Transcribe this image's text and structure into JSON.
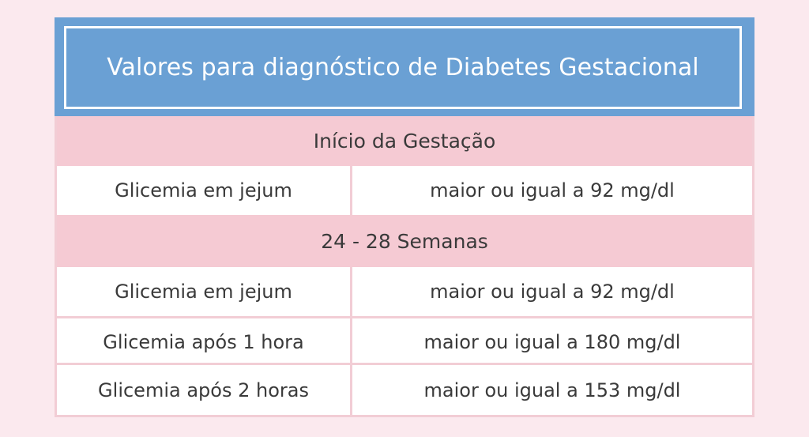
{
  "title": "Valores para diagnóstico de Diabetes Gestacional",
  "sections": [
    {
      "heading": "Início da Gestação",
      "rows": [
        {
          "test": "Glicemia em jejum",
          "value": "maior ou igual a 92 mg/dl"
        }
      ]
    },
    {
      "heading": "24 - 28 Semanas",
      "rows": [
        {
          "test": "Glicemia em jejum",
          "value": "maior ou igual a 92 mg/dl"
        },
        {
          "test": "Glicemia após 1 hora",
          "value": "maior ou igual  a 180 mg/dl"
        },
        {
          "test": "Glicemia após 2 horas",
          "value": "maior ou igual  a 153 mg/dl"
        }
      ]
    }
  ],
  "colors": {
    "header_background": "#6aa0d4",
    "section_background": "#f5cad3",
    "page_background": "#fbe9ee"
  }
}
